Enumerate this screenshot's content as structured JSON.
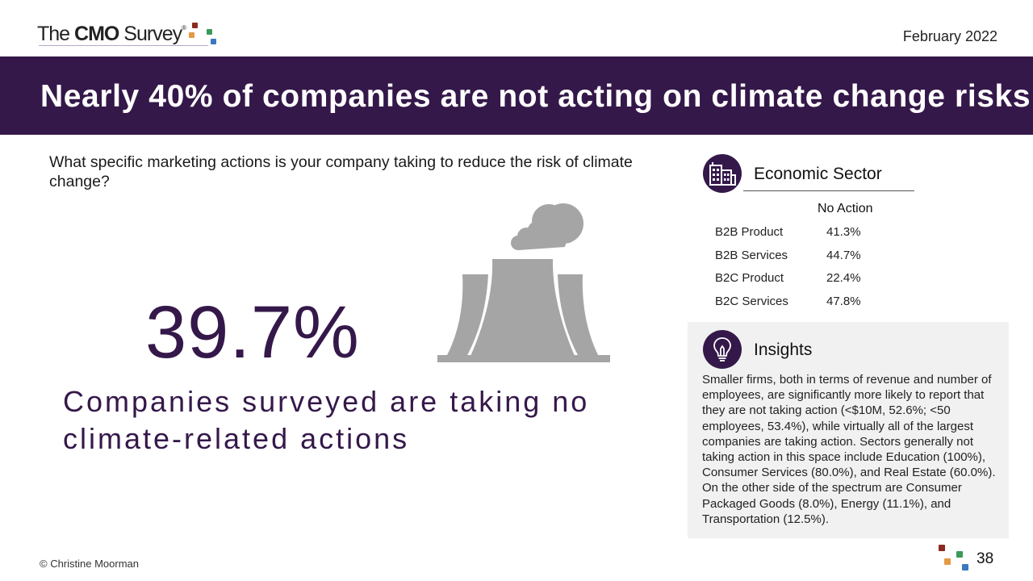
{
  "header": {
    "logo": {
      "prefix": "The ",
      "brand": "CMO",
      "suffix": " Survey",
      "mark": "®"
    },
    "date": "February 2022"
  },
  "title": "Nearly 40% of companies are not acting on climate change risks",
  "question": "What specific marketing actions is your company taking to reduce the risk of climate change?",
  "headline_stat": {
    "value": "39.7%",
    "caption": "Companies surveyed are taking no climate-related actions"
  },
  "economic_sector": {
    "title": "Economic Sector",
    "column_header": "No Action",
    "rows": [
      {
        "label": "B2B Product",
        "value": "41.3%"
      },
      {
        "label": "B2B Services",
        "value": "44.7%"
      },
      {
        "label": "B2C Product",
        "value": "22.4%"
      },
      {
        "label": "B2C Services",
        "value": "47.8%"
      }
    ]
  },
  "insights": {
    "title": "Insights",
    "text": "Smaller firms, both in terms of revenue and number of employees, are significantly more likely to report that they are not taking action (<$10M, 52.6%; <50 employees, 53.4%), while virtually all of the largest companies are taking action. Sectors generally not taking action in this space include Education (100%), Consumer Services (80.0%), and Real Estate (60.0%). On the other side of the spectrum are Consumer Packaged Goods (8.0%), Energy (11.1%), and Transportation (12.5%)."
  },
  "footer": {
    "copyright": "© Christine Moorman",
    "page_number": "38"
  },
  "icons": {
    "sector": "office-buildings-icon",
    "insights": "lightbulb-icon",
    "illustration": "cooling-tower-icon"
  },
  "colors": {
    "brand_purple": "#35184a",
    "dot_red": "#8b2a1f",
    "dot_orange": "#e39a46",
    "dot_green": "#3b9a5a",
    "dot_blue": "#3a79c0",
    "illustration_gray": "#a5a5a5",
    "insight_bg": "#f1f1f1"
  }
}
